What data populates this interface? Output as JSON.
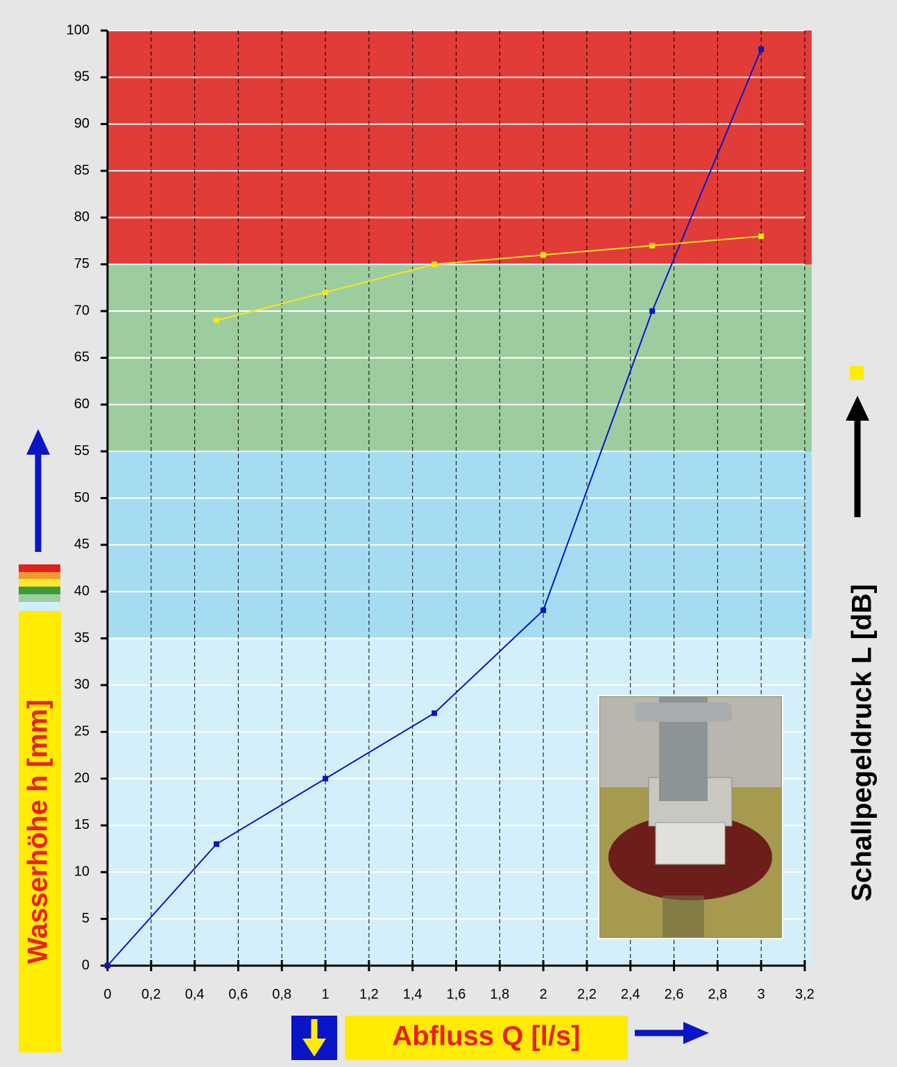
{
  "chart_data": {
    "type": "line",
    "x_title": "Abfluss Q [l/s]",
    "y_title": "Wasserhöhe h [mm]",
    "y2_title": "Schallpegeldruck L [dB]",
    "x": [
      0,
      0.5,
      1,
      1.5,
      2,
      2.5,
      3
    ],
    "series": [
      {
        "color": "#0a14c8",
        "values": [
          0,
          13,
          20,
          27,
          38,
          70,
          98
        ]
      },
      {
        "color": "#f5e61e",
        "values": [
          null,
          69,
          72,
          75,
          76,
          77,
          78
        ]
      }
    ],
    "bands": [
      {
        "from": 0,
        "to": 35,
        "color": "#d2effa"
      },
      {
        "from": 35,
        "to": 55,
        "color": "#a6dcf2"
      },
      {
        "from": 55,
        "to": 75,
        "color": "#9dcd9f"
      },
      {
        "from": 75,
        "to": 100,
        "color": "#e23c38"
      }
    ],
    "xlim": [
      0,
      3.2
    ],
    "xticks": [
      0,
      {
        "value": 0.2,
        "label": "0,2"
      },
      {
        "value": 0.4,
        "label": "0,4"
      },
      {
        "value": 0.6,
        "label": "0,6"
      },
      {
        "value": 0.8,
        "label": "0,8"
      },
      1,
      {
        "value": 1.2,
        "label": "1,2"
      },
      {
        "value": 1.4,
        "label": "1,4"
      },
      {
        "value": 1.6,
        "label": "1,6"
      },
      {
        "value": 1.8,
        "label": "1,8"
      },
      2,
      {
        "value": 2.2,
        "label": "2,2"
      },
      {
        "value": 2.4,
        "label": "2,4"
      },
      {
        "value": 2.6,
        "label": "2,6"
      },
      {
        "value": 2.8,
        "label": "2,8"
      },
      3,
      {
        "value": 3.2,
        "label": "3,2"
      }
    ],
    "ylim": [
      0,
      100
    ],
    "yticks": [
      0,
      5,
      10,
      15,
      20,
      25,
      30,
      35,
      40,
      45,
      50,
      55,
      60,
      65,
      70,
      75,
      80,
      85,
      90,
      95,
      100
    ],
    "grid": true
  }
}
